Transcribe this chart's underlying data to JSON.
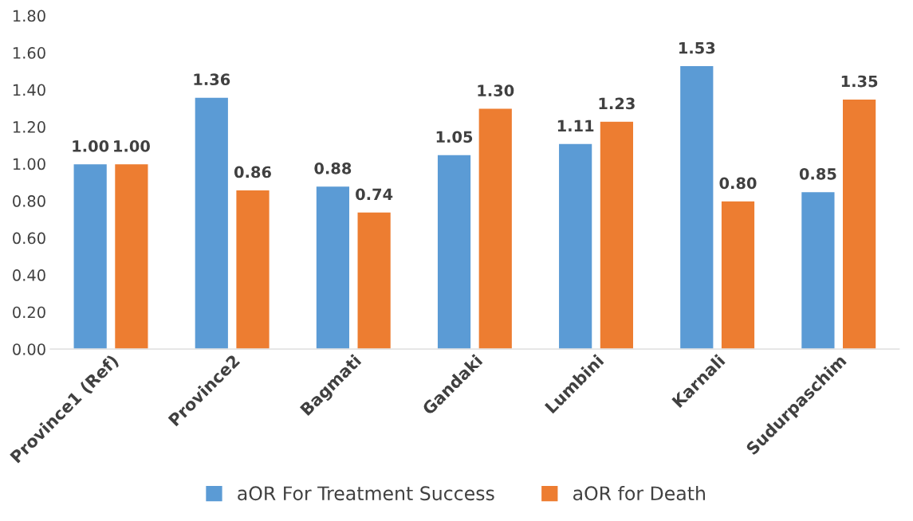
{
  "chart_data": {
    "type": "bar",
    "categories": [
      "Province1 (Ref)",
      "Province2",
      "Bagmati",
      "Gandaki",
      "Lumbini",
      "Karnali",
      "Sudurpaschim"
    ],
    "series": [
      {
        "name": "aOR For Treatment Success",
        "color": "#5b9bd5",
        "values": [
          1.0,
          1.36,
          0.88,
          1.05,
          1.11,
          1.53,
          0.85
        ],
        "value_labels": [
          "1.00",
          "1.36",
          "0.88",
          "1.05",
          "1.11",
          "1.53",
          "0.85"
        ]
      },
      {
        "name": "aOR for Death",
        "color": "#ed7d31",
        "values": [
          1.0,
          0.86,
          0.74,
          1.3,
          1.23,
          0.8,
          1.35
        ],
        "value_labels": [
          "1.00",
          "0.86",
          "0.74",
          "1.30",
          "1.23",
          "0.80",
          "1.35"
        ]
      }
    ],
    "ylim": [
      0,
      1.8
    ],
    "yticks": [
      {
        "value": 0,
        "label": "0.00"
      },
      {
        "value": 0.2,
        "label": "0.20"
      },
      {
        "value": 0.4,
        "label": "0.40"
      },
      {
        "value": 0.6,
        "label": "0.60"
      },
      {
        "value": 0.8,
        "label": "0.80"
      },
      {
        "value": 1.0,
        "label": "1.00"
      },
      {
        "value": 1.2,
        "label": "1.20"
      },
      {
        "value": 1.4,
        "label": "1.40"
      },
      {
        "value": 1.6,
        "label": "1.60"
      },
      {
        "value": 1.8,
        "label": "1.80"
      }
    ],
    "grid": false,
    "legend": "bottom"
  }
}
